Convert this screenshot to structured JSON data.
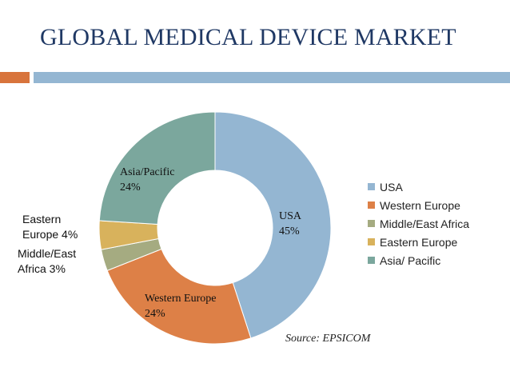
{
  "slide": {
    "title": "GLOBAL MEDICAL DEVICE MARKET",
    "source": "Source: EPSICOM",
    "accent_orange": "#d8743c",
    "accent_blue": "#94b6d2"
  },
  "chart_data": {
    "type": "pie",
    "style": "donut",
    "title": "",
    "legend_position": "right",
    "categories": [
      "USA",
      "Western Europe",
      "Middle/East Africa",
      "Eastern Europe",
      "Asia/ Pacific"
    ],
    "values": [
      45,
      24,
      3,
      4,
      24
    ],
    "colors": [
      "#94b6d2",
      "#dd8047",
      "#a5ab81",
      "#d8b25c",
      "#7ba79d"
    ],
    "data_labels": [
      {
        "name": "USA",
        "value": "45%"
      },
      {
        "name": "Western Europe",
        "value": "24%"
      },
      {
        "name": "Middle/East Africa",
        "value": "Middle/East Africa 3%"
      },
      {
        "name": "Eastern Europe",
        "value": "Eastern Europe 4%"
      },
      {
        "name": "Asia/Pacific",
        "value": "24%"
      }
    ]
  }
}
